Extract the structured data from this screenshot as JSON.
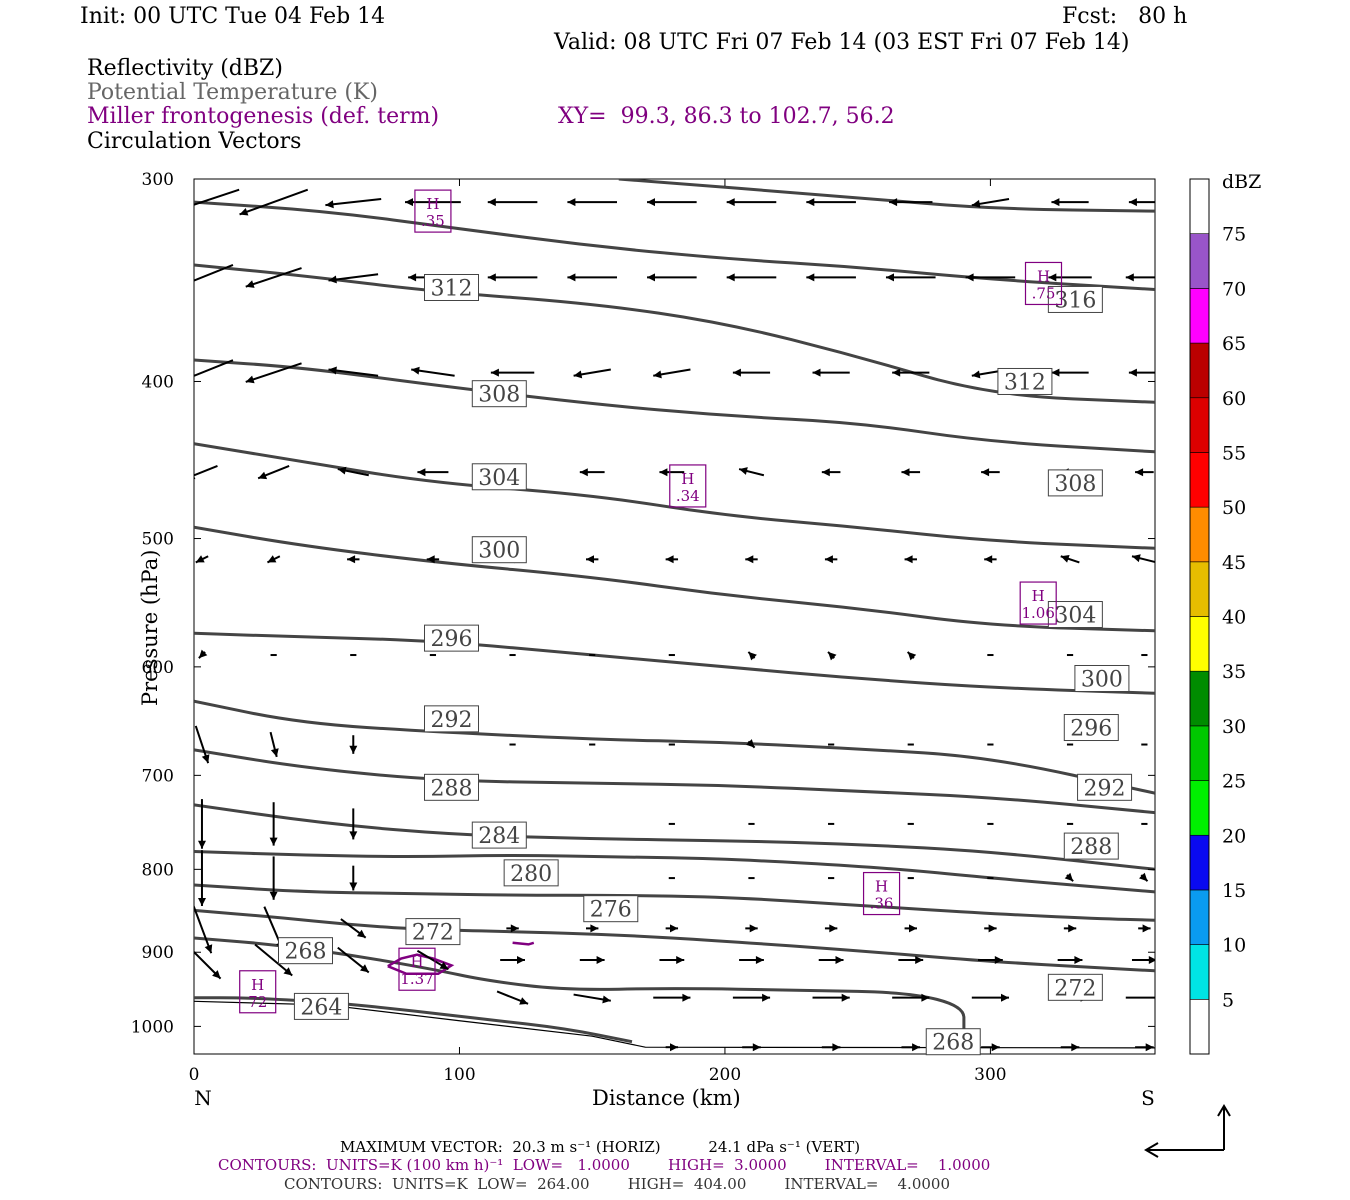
{
  "header": {
    "init": "Init: 00 UTC Tue 04 Feb 14",
    "fcst": "Fcst:   80 h",
    "valid": "Valid: 08 UTC Fri 07 Feb 14 (03 EST Fri 07 Feb 14)",
    "fields": [
      "Reflectivity (dBZ)",
      "Potential Temperature (K)",
      "Miller frontogenesis (def. term)",
      "Circulation Vectors"
    ],
    "xy": "XY=  99.3, 86.3 to 102.7, 56.2"
  },
  "colors": {
    "contour": "#444444",
    "fronto": "#800080",
    "vector": "#000000",
    "dbz_scale": [
      "#ffffff",
      "#00e4e4",
      "#0a9bf0",
      "#0a0af0",
      "#00f000",
      "#00c800",
      "#008c00",
      "#ffff00",
      "#e6bd00",
      "#ff8c00",
      "#ff0000",
      "#dd0000",
      "#bb0000",
      "#ff00ff",
      "#9955c9",
      "#ffffff"
    ]
  },
  "chart_data": {
    "type": "line",
    "title": "",
    "xlabel": "Distance (km)",
    "ylabel": "Pressure (hPa)",
    "xlim": [
      0,
      362
    ],
    "ylim": [
      1040,
      300
    ],
    "y_scale": "log",
    "x_ticks": [
      0,
      100,
      200,
      300
    ],
    "y_ticks": [
      300,
      400,
      500,
      600,
      700,
      800,
      900,
      1000
    ],
    "x_end_labels": [
      "N",
      "S"
    ],
    "theta_contours": [
      {
        "label": "264",
        "points": [
          [
            0,
            960
          ],
          [
            20,
            960
          ],
          [
            50,
            966
          ],
          [
            80,
            977
          ],
          [
            110,
            990
          ],
          [
            140,
            1003
          ],
          [
            165,
            1022
          ]
        ]
      },
      {
        "label": "268",
        "points": [
          [
            0,
            882
          ],
          [
            30,
            890
          ],
          [
            60,
            904
          ],
          [
            90,
            922
          ],
          [
            110,
            937
          ],
          [
            140,
            950
          ],
          [
            180,
            947
          ],
          [
            230,
            950
          ],
          [
            270,
            953
          ],
          [
            290,
            972
          ],
          [
            290,
            1003
          ]
        ]
      },
      {
        "label": "272",
        "points": [
          [
            0,
            848
          ],
          [
            30,
            856
          ],
          [
            60,
            866
          ],
          [
            90,
            872
          ],
          [
            120,
            874
          ],
          [
            160,
            878
          ],
          [
            200,
            886
          ],
          [
            250,
            898
          ],
          [
            300,
            912
          ],
          [
            340,
            920
          ],
          [
            362,
            924
          ]
        ]
      },
      {
        "label": "276",
        "points": [
          [
            0,
            818
          ],
          [
            40,
            826
          ],
          [
            80,
            828
          ],
          [
            120,
            830
          ],
          [
            160,
            830
          ],
          [
            200,
            832
          ],
          [
            250,
            842
          ],
          [
            300,
            852
          ],
          [
            340,
            858
          ],
          [
            362,
            860
          ]
        ]
      },
      {
        "label": "280",
        "points": [
          [
            0,
            780
          ],
          [
            40,
            784
          ],
          [
            80,
            786
          ],
          [
            120,
            784
          ],
          [
            160,
            786
          ],
          [
            200,
            788
          ],
          [
            260,
            798
          ],
          [
            300,
            810
          ],
          [
            362,
            826
          ]
        ]
      },
      {
        "label": "284",
        "points": [
          [
            0,
            730
          ],
          [
            50,
            750
          ],
          [
            100,
            762
          ],
          [
            150,
            766
          ],
          [
            200,
            768
          ],
          [
            250,
            772
          ],
          [
            300,
            780
          ],
          [
            362,
            800
          ]
        ]
      },
      {
        "label": "288",
        "points": [
          [
            0,
            675
          ],
          [
            40,
            692
          ],
          [
            90,
            705
          ],
          [
            150,
            708
          ],
          [
            200,
            710
          ],
          [
            250,
            716
          ],
          [
            300,
            722
          ],
          [
            362,
            738
          ]
        ]
      },
      {
        "label": "292",
        "points": [
          [
            0,
            630
          ],
          [
            40,
            650
          ],
          [
            90,
            658
          ],
          [
            150,
            665
          ],
          [
            200,
            668
          ],
          [
            250,
            674
          ],
          [
            300,
            682
          ],
          [
            362,
            718
          ]
        ]
      },
      {
        "label": "296",
        "points": [
          [
            0,
            572
          ],
          [
            40,
            575
          ],
          [
            90,
            578
          ],
          [
            150,
            590
          ],
          [
            200,
            600
          ],
          [
            250,
            610
          ],
          [
            300,
            618
          ],
          [
            362,
            623
          ]
        ]
      },
      {
        "label": "300",
        "points": [
          [
            0,
            492
          ],
          [
            40,
            505
          ],
          [
            90,
            517
          ],
          [
            150,
            528
          ],
          [
            200,
            542
          ],
          [
            250,
            552
          ],
          [
            300,
            566
          ],
          [
            362,
            570
          ]
        ]
      },
      {
        "label": "304",
        "points": [
          [
            0,
            437
          ],
          [
            40,
            448
          ],
          [
            90,
            462
          ],
          [
            150,
            470
          ],
          [
            200,
            484
          ],
          [
            250,
            492
          ],
          [
            300,
            502
          ],
          [
            362,
            507
          ]
        ]
      },
      {
        "label": "308",
        "points": [
          [
            0,
            388
          ],
          [
            40,
            392
          ],
          [
            90,
            402
          ],
          [
            150,
            413
          ],
          [
            200,
            420
          ],
          [
            250,
            424
          ],
          [
            300,
            436
          ],
          [
            362,
            442
          ]
        ]
      },
      {
        "label": "312",
        "points": [
          [
            0,
            339
          ],
          [
            40,
            344
          ],
          [
            90,
            352
          ],
          [
            150,
            358
          ],
          [
            200,
            368
          ],
          [
            250,
            386
          ],
          [
            300,
            408
          ],
          [
            362,
            412
          ]
        ]
      },
      {
        "label": "316",
        "points": [
          [
            0,
            310
          ],
          [
            50,
            314
          ],
          [
            100,
            322
          ],
          [
            150,
            330
          ],
          [
            200,
            336
          ],
          [
            250,
            340
          ],
          [
            300,
            346
          ],
          [
            362,
            351
          ]
        ]
      },
      {
        "label": "",
        "points": [
          [
            160,
            300
          ],
          [
            250,
            308
          ],
          [
            300,
            313
          ],
          [
            362,
            314
          ]
        ]
      }
    ],
    "contour_labels": [
      {
        "text": "312",
        "x": 97,
        "y": 350
      },
      {
        "text": "316",
        "x": 332,
        "y": 356
      },
      {
        "text": "312",
        "x": 313,
        "y": 400
      },
      {
        "text": "308",
        "x": 115,
        "y": 407
      },
      {
        "text": "308",
        "x": 332,
        "y": 462
      },
      {
        "text": "304",
        "x": 115,
        "y": 458
      },
      {
        "text": "304",
        "x": 332,
        "y": 557
      },
      {
        "text": "300",
        "x": 115,
        "y": 508
      },
      {
        "text": "300",
        "x": 342,
        "y": 610
      },
      {
        "text": "296",
        "x": 97,
        "y": 576
      },
      {
        "text": "296",
        "x": 338,
        "y": 654
      },
      {
        "text": "292",
        "x": 97,
        "y": 646
      },
      {
        "text": "292",
        "x": 343,
        "y": 712
      },
      {
        "text": "288",
        "x": 97,
        "y": 712
      },
      {
        "text": "288",
        "x": 338,
        "y": 774
      },
      {
        "text": "284",
        "x": 115,
        "y": 762
      },
      {
        "text": "280",
        "x": 127,
        "y": 804
      },
      {
        "text": "276",
        "x": 157,
        "y": 846
      },
      {
        "text": "272",
        "x": 90,
        "y": 874
      },
      {
        "text": "272",
        "x": 332,
        "y": 946
      },
      {
        "text": "268",
        "x": 42,
        "y": 898
      },
      {
        "text": "268",
        "x": 286,
        "y": 1022
      },
      {
        "text": "264",
        "x": 48,
        "y": 972
      }
    ],
    "fronto_maxima": [
      {
        "label": "H",
        "value": ".35",
        "x": 90,
        "y": 314
      },
      {
        "label": "H",
        "value": ".75",
        "x": 320,
        "y": 348
      },
      {
        "label": "H",
        "value": ".34",
        "x": 186,
        "y": 464
      },
      {
        "label": "H",
        "value": "1.06",
        "x": 318,
        "y": 548
      },
      {
        "label": "H",
        "value": ".36",
        "x": 259,
        "y": 828
      },
      {
        "label": "H",
        "value": "1.37",
        "x": 84,
        "y": 922
      },
      {
        "label": "H",
        "value": "72",
        "x": 24,
        "y": 952
      }
    ],
    "fronto_contours": [
      {
        "level": "1",
        "points": [
          [
            73,
            918
          ],
          [
            78,
            908
          ],
          [
            84,
            903
          ],
          [
            90,
            908
          ],
          [
            97,
            917
          ],
          [
            92,
            928
          ],
          [
            80,
            928
          ],
          [
            73,
            918
          ]
        ]
      },
      {
        "level": "1",
        "points": [
          [
            120,
            888
          ],
          [
            126,
            890
          ],
          [
            128,
            888
          ]
        ]
      }
    ],
    "vector_rows": [
      {
        "p": 310,
        "u": [
          -12,
          -11,
          -9,
          -9,
          -8,
          -8,
          -8,
          -8,
          -8,
          -7,
          -6,
          -6,
          -5
        ],
        "w": [
          4,
          4,
          1,
          0,
          0,
          0,
          0,
          0,
          0,
          0,
          1,
          0,
          0
        ]
      },
      {
        "p": 345,
        "u": [
          -10,
          -9,
          -8,
          -8,
          -8,
          -8,
          -8,
          -8,
          -8,
          -8,
          -8,
          -7,
          -6
        ],
        "w": [
          4,
          3,
          1,
          0,
          0,
          0,
          0,
          0,
          0,
          0,
          0,
          0,
          0
        ]
      },
      {
        "p": 395,
        "u": [
          -10,
          -9,
          -8,
          -7,
          -7,
          -6,
          -6,
          -6,
          -6,
          -6,
          -6,
          -6,
          -5
        ],
        "w": [
          4,
          3,
          -1,
          -1,
          0,
          1,
          1,
          0,
          0,
          0,
          1,
          0,
          0
        ]
      },
      {
        "p": 455,
        "u": [
          -5,
          -5,
          -5,
          -5,
          -4,
          -4,
          -4,
          -4,
          -3,
          -3,
          -3,
          -3,
          -3
        ],
        "w": [
          2,
          2,
          -1,
          0,
          0,
          0,
          0,
          -1,
          0,
          0,
          0,
          0,
          0
        ]
      },
      {
        "p": 515,
        "u": [
          -2,
          -2,
          -2,
          -2,
          -2,
          -2,
          -2,
          -2,
          -2,
          -2,
          -2,
          -3,
          -4
        ],
        "w": [
          1,
          1,
          0,
          0,
          0,
          0,
          0,
          0,
          0,
          0,
          0,
          -1,
          -1
        ]
      },
      {
        "p": 590,
        "u": [
          -1,
          -1,
          -1,
          -1,
          -1,
          -1,
          -1,
          -1,
          -1,
          -1,
          -1,
          -1,
          -1
        ],
        "w": [
          1,
          0,
          0,
          0,
          0,
          0,
          0,
          -1,
          -1,
          -1,
          0,
          0,
          0
        ]
      },
      {
        "p": 670,
        "u": [
          2,
          1,
          0,
          0,
          1,
          1,
          1,
          1,
          1,
          1,
          1,
          1,
          1
        ],
        "w": [
          6,
          4,
          3,
          0,
          0,
          0,
          0,
          1,
          0,
          0,
          0,
          0,
          0
        ]
      },
      {
        "p": 750,
        "u": [
          0,
          0,
          0,
          0,
          0,
          0,
          1,
          1,
          1,
          1,
          1,
          1,
          1
        ],
        "w": [
          8,
          7,
          5,
          0,
          0,
          0,
          0,
          0,
          0,
          0,
          0,
          0,
          0
        ]
      },
      {
        "p": 810,
        "u": [
          0,
          0,
          0,
          0,
          0,
          0,
          1,
          1,
          1,
          1,
          1,
          1,
          1
        ],
        "w": [
          9,
          7,
          4,
          0,
          0,
          0,
          0,
          0,
          0,
          0,
          0,
          1,
          1
        ]
      },
      {
        "p": 870,
        "u": [
          3,
          3,
          4,
          3,
          2,
          2,
          2,
          2,
          2,
          2,
          2,
          2,
          2
        ],
        "w": [
          8,
          7,
          3,
          0,
          0,
          0,
          0,
          0,
          0,
          0,
          0,
          0,
          0
        ]
      },
      {
        "p": 910,
        "u": [
          6,
          6,
          5,
          5,
          4,
          4,
          4,
          4,
          4,
          4,
          4,
          4,
          4
        ],
        "w": [
          6,
          5,
          4,
          3,
          0,
          0,
          0,
          0,
          0,
          0,
          0,
          0,
          0
        ]
      },
      {
        "p": 960,
        "u": [
          0,
          0,
          0,
          0,
          5,
          6,
          6,
          6,
          6,
          6,
          6,
          6,
          6
        ],
        "w": [
          0,
          0,
          0,
          0,
          2,
          1,
          0,
          0,
          0,
          0,
          0,
          0,
          0
        ]
      },
      {
        "p": 1030,
        "u": [
          0,
          0,
          0,
          0,
          0,
          0,
          2,
          3,
          3,
          3,
          3,
          3,
          3
        ],
        "w": [
          0,
          0,
          0,
          0,
          0,
          0,
          0,
          0,
          0,
          0,
          0,
          0,
          0
        ]
      }
    ],
    "vector_x": [
      3,
      30,
      60,
      90,
      120,
      150,
      180,
      210,
      240,
      270,
      300,
      330,
      358
    ],
    "colorbar": {
      "title": "dBZ",
      "levels": [
        "5",
        "10",
        "15",
        "20",
        "25",
        "30",
        "35",
        "40",
        "45",
        "50",
        "55",
        "60",
        "65",
        "70",
        "75"
      ]
    }
  },
  "footer": {
    "max_vector": "MAXIMUM VECTOR:  20.3 m s⁻¹ (HORIZ)          24.1 dPa s⁻¹ (VERT)",
    "contours_fronto": "CONTOURS:  UNITS=K (100 km h)⁻¹  LOW=   1.0000        HIGH=  3.0000        INTERVAL=    1.0000",
    "contours_theta": "CONTOURS:  UNITS=K  LOW=  264.00        HIGH=  404.00        INTERVAL=    4.0000"
  }
}
